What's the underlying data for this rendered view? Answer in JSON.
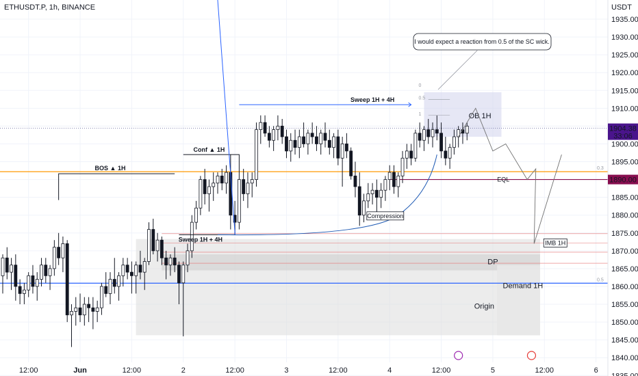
{
  "header": {
    "symbol": "ETHUSDT.P, 1h, BINANCE",
    "currency": "USDT"
  },
  "chart_data": {
    "type": "candlestick",
    "y_axis": {
      "range": [
        1833,
        1941
      ],
      "ticks": [
        1835,
        1840,
        1845,
        1850,
        1855,
        1860,
        1865,
        1870,
        1875,
        1880,
        1885,
        1890,
        1895,
        1900,
        1905,
        1910,
        1915,
        1920,
        1925,
        1930,
        1935
      ],
      "tick_labels": [
        "1835.00",
        "1840.00",
        "1845.00",
        "1850.00",
        "1855.00",
        "1860.00",
        "1865.00",
        "1870.00",
        "1875.00",
        "1880.00",
        "1885.00",
        "1890.00",
        "1895.00",
        "1900.00",
        "1905.00",
        "1910.00",
        "1915.00",
        "1920.00",
        "1925.00",
        "1930.00",
        "1935.00"
      ]
    },
    "x_axis": {
      "ticks": [
        {
          "bar": 6,
          "label": "12:00"
        },
        {
          "bar": 18,
          "label": "Jun"
        },
        {
          "bar": 30,
          "label": "12:00"
        },
        {
          "bar": 42,
          "label": "2"
        },
        {
          "bar": 54,
          "label": "12:00"
        },
        {
          "bar": 66,
          "label": "3"
        },
        {
          "bar": 78,
          "label": "12:00"
        },
        {
          "bar": 90,
          "label": "4"
        },
        {
          "bar": 102,
          "label": "12:00"
        },
        {
          "bar": 114,
          "label": "5"
        },
        {
          "bar": 126,
          "label": "12:00"
        },
        {
          "bar": 138,
          "label": "6"
        }
      ]
    },
    "candles": [
      [
        1863,
        1869,
        1858,
        1868
      ],
      [
        1868,
        1871,
        1862,
        1864
      ],
      [
        1864,
        1868,
        1859,
        1866
      ],
      [
        1866,
        1869,
        1856,
        1860
      ],
      [
        1860,
        1862,
        1855,
        1858
      ],
      [
        1858,
        1861,
        1855,
        1859
      ],
      [
        1859,
        1864,
        1857,
        1863
      ],
      [
        1863,
        1866,
        1858,
        1860
      ],
      [
        1860,
        1864,
        1856,
        1862
      ],
      [
        1862,
        1868,
        1860,
        1866
      ],
      [
        1866,
        1868,
        1861,
        1863
      ],
      [
        1863,
        1866,
        1859,
        1865
      ],
      [
        1865,
        1873,
        1863,
        1871
      ],
      [
        1871,
        1875,
        1866,
        1868
      ],
      [
        1868,
        1874,
        1864,
        1872
      ],
      [
        1872,
        1873,
        1850,
        1852
      ],
      [
        1852,
        1855,
        1843,
        1853
      ],
      [
        1853,
        1857,
        1849,
        1854
      ],
      [
        1854,
        1858,
        1850,
        1852
      ],
      [
        1852,
        1857,
        1849,
        1855
      ],
      [
        1855,
        1857,
        1850,
        1854
      ],
      [
        1854,
        1857,
        1848,
        1853
      ],
      [
        1853,
        1856,
        1850,
        1854
      ],
      [
        1854,
        1861,
        1852,
        1860
      ],
      [
        1860,
        1864,
        1857,
        1858
      ],
      [
        1858,
        1864,
        1855,
        1862
      ],
      [
        1862,
        1868,
        1858,
        1860
      ],
      [
        1860,
        1864,
        1856,
        1863
      ],
      [
        1863,
        1868,
        1860,
        1866
      ],
      [
        1866,
        1868,
        1862,
        1864
      ],
      [
        1864,
        1867,
        1858,
        1863
      ],
      [
        1863,
        1867,
        1858,
        1866
      ],
      [
        1866,
        1870,
        1862,
        1864
      ],
      [
        1864,
        1868,
        1859,
        1867
      ],
      [
        1867,
        1878,
        1866,
        1876
      ],
      [
        1876,
        1879,
        1869,
        1870
      ],
      [
        1870,
        1875,
        1867,
        1873
      ],
      [
        1873,
        1874,
        1866,
        1868
      ],
      [
        1868,
        1870,
        1862,
        1866
      ],
      [
        1866,
        1869,
        1863,
        1868
      ],
      [
        1868,
        1871,
        1864,
        1866
      ],
      [
        1866,
        1867,
        1855,
        1861
      ],
      [
        1861,
        1867,
        1846,
        1866
      ],
      [
        1866,
        1872,
        1864,
        1870
      ],
      [
        1870,
        1880,
        1868,
        1878
      ],
      [
        1878,
        1884,
        1876,
        1882
      ],
      [
        1882,
        1891,
        1880,
        1890
      ],
      [
        1890,
        1893,
        1883,
        1886
      ],
      [
        1886,
        1890,
        1881,
        1888
      ],
      [
        1888,
        1892,
        1884,
        1889
      ],
      [
        1889,
        1892,
        1886,
        1891
      ],
      [
        1891,
        1893,
        1887,
        1889
      ],
      [
        1889,
        1894,
        1886,
        1892
      ],
      [
        1892,
        1897,
        1876,
        1880
      ],
      [
        1880,
        1884,
        1875,
        1878
      ],
      [
        1878,
        1893,
        1876,
        1890
      ],
      [
        1890,
        1893,
        1884,
        1886
      ],
      [
        1886,
        1892,
        1882,
        1889
      ],
      [
        1889,
        1892,
        1885,
        1890
      ],
      [
        1890,
        1906,
        1888,
        1904
      ],
      [
        1904,
        1908,
        1900,
        1906
      ],
      [
        1906,
        1908,
        1902,
        1903
      ],
      [
        1903,
        1905,
        1899,
        1901
      ],
      [
        1901,
        1905,
        1898,
        1904
      ],
      [
        1904,
        1908,
        1901,
        1905
      ],
      [
        1905,
        1907,
        1900,
        1902
      ],
      [
        1902,
        1904,
        1896,
        1898
      ],
      [
        1898,
        1903,
        1895,
        1901
      ],
      [
        1901,
        1904,
        1897,
        1899
      ],
      [
        1899,
        1904,
        1896,
        1902
      ],
      [
        1902,
        1906,
        1899,
        1900
      ],
      [
        1900,
        1904,
        1897,
        1903
      ],
      [
        1903,
        1906,
        1900,
        1902
      ],
      [
        1902,
        1905,
        1898,
        1900
      ],
      [
        1900,
        1904,
        1897,
        1903
      ],
      [
        1903,
        1906,
        1899,
        1901
      ],
      [
        1901,
        1904,
        1897,
        1899
      ],
      [
        1899,
        1903,
        1896,
        1902
      ],
      [
        1902,
        1904,
        1894,
        1896
      ],
      [
        1896,
        1902,
        1888,
        1900
      ],
      [
        1900,
        1903,
        1896,
        1898
      ],
      [
        1898,
        1899,
        1890,
        1891
      ],
      [
        1891,
        1895,
        1885,
        1888
      ],
      [
        1888,
        1892,
        1877,
        1880
      ],
      [
        1880,
        1886,
        1878,
        1884
      ],
      [
        1884,
        1889,
        1882,
        1886
      ],
      [
        1886,
        1889,
        1883,
        1887
      ],
      [
        1887,
        1890,
        1880,
        1885
      ],
      [
        1885,
        1889,
        1882,
        1887
      ],
      [
        1887,
        1891,
        1884,
        1890
      ],
      [
        1890,
        1894,
        1887,
        1892
      ],
      [
        1892,
        1894,
        1886,
        1888
      ],
      [
        1888,
        1892,
        1885,
        1891
      ],
      [
        1891,
        1898,
        1889,
        1896
      ],
      [
        1896,
        1900,
        1893,
        1898
      ],
      [
        1898,
        1900,
        1894,
        1896
      ],
      [
        1896,
        1904,
        1895,
        1903
      ],
      [
        1903,
        1906,
        1899,
        1901
      ],
      [
        1901,
        1905,
        1898,
        1904
      ],
      [
        1904,
        1907,
        1900,
        1902
      ],
      [
        1902,
        1906,
        1899,
        1904
      ],
      [
        1904,
        1908,
        1901,
        1903
      ],
      [
        1903,
        1906,
        1896,
        1898
      ],
      [
        1898,
        1902,
        1894,
        1896
      ],
      [
        1896,
        1900,
        1893,
        1899
      ],
      [
        1899,
        1904,
        1897,
        1902
      ],
      [
        1902,
        1905,
        1899,
        1904
      ],
      [
        1904,
        1906,
        1900,
        1903
      ],
      [
        1903,
        1906,
        1901,
        1905
      ]
    ],
    "levels": [
      {
        "price": 1892.2,
        "color": "#ff9800",
        "right_label": "0.3"
      },
      {
        "price": 1890.0,
        "color": "#880e4f",
        "label": "EQL",
        "axis_label": "1890.00"
      },
      {
        "price": 1860.9,
        "color": "#2962ff",
        "right_label": "0.5"
      },
      {
        "price": 1904.38,
        "color": "#5b5f9a",
        "dotted": true,
        "axis_label": "1904.38",
        "axis_sub": "33:06"
      }
    ],
    "annotations": {
      "sweep_1h4h_top": "Sweep 1H + 4H",
      "sweep_1h4h_bottom": "Sweep 1H + 4H",
      "conf_1h": "Conf ▲ 1H",
      "bos_1h": "BOS ▲ 1H",
      "compression": "Compression",
      "callout": "I would expect a reaction from 0.5 of the SC wick.",
      "ob_1h": "OB 1H",
      "imb_1h": "IMB 1H",
      "dp": "DP",
      "demand_1h": "Demand 1H",
      "origin": "Origin",
      "fib_levels": [
        "0",
        "0.5",
        "1"
      ]
    },
    "colors": {
      "up": "#ffffff",
      "down": "#131722",
      "wick": "#131722"
    }
  }
}
